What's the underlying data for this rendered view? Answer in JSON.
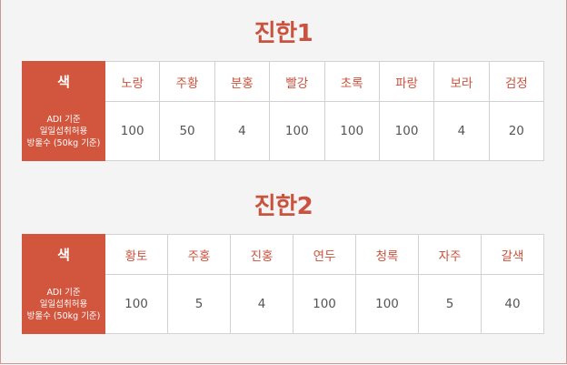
{
  "section1": {
    "title": "진한1",
    "label_color": "색",
    "label_adi": [
      "ADI 기준",
      "일일섭취허용",
      "방울수 (50kg 기준)"
    ],
    "columns": [
      "노랑",
      "주황",
      "분홍",
      "빨강",
      "초록",
      "파랑",
      "보라",
      "검정"
    ],
    "values": [
      "100",
      "50",
      "4",
      "100",
      "100",
      "100",
      "4",
      "20"
    ]
  },
  "section2": {
    "title": "진한2",
    "label_color": "색",
    "label_adi": [
      "ADI 기준",
      "일일섭취허용",
      "방울수 (50kg 기준)"
    ],
    "columns": [
      "황토",
      "주홍",
      "진홍",
      "연두",
      "청록",
      "자주",
      "갈색"
    ],
    "values": [
      "100",
      "5",
      "4",
      "100",
      "100",
      "5",
      "40"
    ]
  },
  "colors": {
    "accent": "#d2553e",
    "title": "#c9533e",
    "border": "#d2d2d2",
    "background": "#f4f4f4"
  }
}
